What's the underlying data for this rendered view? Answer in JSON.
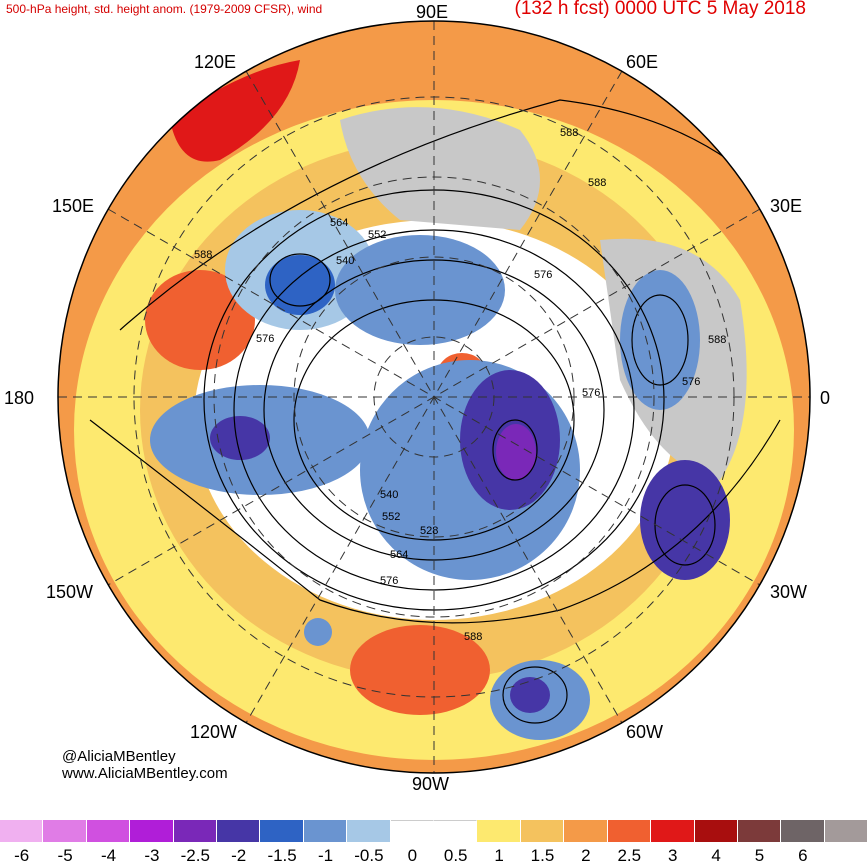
{
  "header": {
    "left": "500-hPa height, std. height anom. (1979-2009 CFSR), wind",
    "right": "(132 h fcst) 0000 UTC 5 May 2018"
  },
  "map_labels": {
    "top": "90E",
    "right": "0",
    "bottom": "90W",
    "left": "180",
    "upper_left": "120E",
    "upper_right": "60E",
    "upper_left2": "150E",
    "upper_right2": "30E",
    "lower_left": "150W",
    "lower_right": "30W",
    "lower_left2": "120W",
    "lower_right2": "60W"
  },
  "contour_labels": [
    "588",
    "588",
    "564",
    "552",
    "540",
    "588",
    "576",
    "576",
    "588",
    "576",
    "576",
    "540",
    "552",
    "528",
    "564",
    "576",
    "588"
  ],
  "credit": {
    "handle": "@AliciaMBentley",
    "site": "www.AliciaMBentley.com"
  },
  "colorbar": {
    "colors": [
      "#f0b0f0",
      "#e07ce6",
      "#d050e0",
      "#b01ed8",
      "#7a28b8",
      "#4636a6",
      "#2e63c4",
      "#6a94d0",
      "#a6c8e6",
      "#ffffff",
      "#ffffff",
      "#fde96f",
      "#f4c25e",
      "#f49a48",
      "#f06030",
      "#e01818",
      "#a80e0e",
      "#7c3a3a",
      "#6e6466",
      "#a39a9a"
    ],
    "ticks": [
      "-6",
      "-5",
      "-4",
      "-3",
      "-2.5",
      "-2",
      "-1.5",
      "-1",
      "-0.5",
      "0",
      "0.5",
      "1",
      "1.5",
      "2",
      "2.5",
      "3",
      "4",
      "5",
      "6"
    ]
  }
}
